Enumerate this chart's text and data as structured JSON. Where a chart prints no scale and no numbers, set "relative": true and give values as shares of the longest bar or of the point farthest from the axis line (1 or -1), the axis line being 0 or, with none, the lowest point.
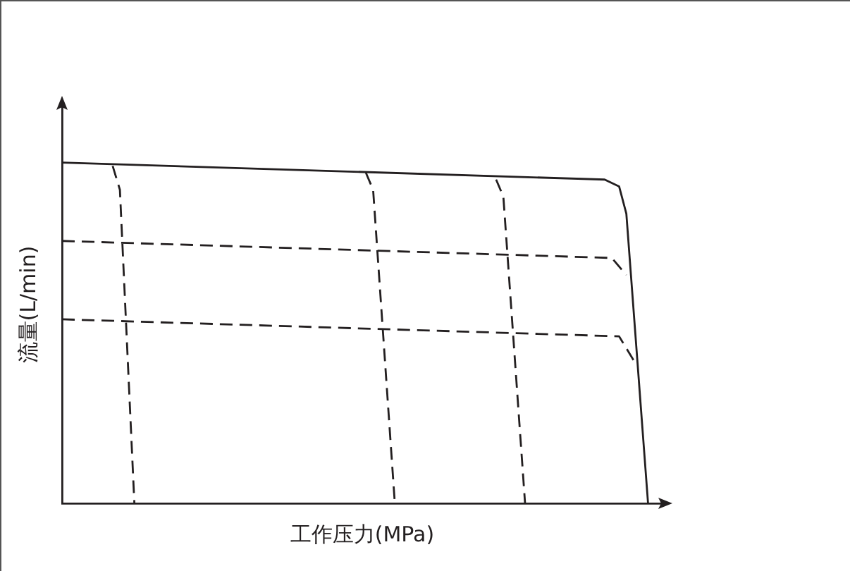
{
  "chart_data": {
    "type": "line",
    "relative": true,
    "xlabel": "工作压力(MPa)",
    "ylabel": "流量(L/min)",
    "tick_labels": false,
    "grid": false,
    "legend": false,
    "marker": "none",
    "categories": [
      null,
      null,
      null,
      null,
      null,
      null,
      null,
      null,
      null,
      null,
      null,
      null,
      null,
      null,
      null,
      null,
      null,
      null,
      null,
      null,
      null,
      null,
      null,
      null,
      null,
      null,
      null,
      null,
      null,
      null,
      null,
      null,
      null,
      null,
      null,
      null,
      null,
      null,
      null,
      null,
      null,
      null,
      null,
      null,
      null,
      null,
      null,
      null,
      null,
      null,
      null,
      null,
      null,
      null,
      null,
      null,
      null,
      null,
      null,
      null,
      null,
      null,
      null,
      null,
      null,
      null,
      null,
      null,
      null,
      null,
      null,
      null,
      null,
      null,
      null,
      null,
      null,
      null,
      null,
      null,
      null,
      null,
      null,
      null
    ],
    "series": [
      {
        "color": "#231f20",
        "line_style": "solid",
        "values": [
          1.0,
          null,
          null,
          null,
          null,
          null,
          null,
          null,
          null,
          null,
          null,
          null,
          null,
          null,
          null,
          null,
          null,
          null,
          null,
          null,
          null,
          null,
          null,
          null,
          null,
          null,
          null,
          null,
          null,
          null,
          null,
          null,
          null,
          null,
          null,
          null,
          null,
          null,
          null,
          null,
          null,
          null,
          null,
          null,
          null,
          null,
          null,
          null,
          null,
          null,
          null,
          null,
          null,
          null,
          null,
          null,
          null,
          null,
          null,
          null,
          null,
          null,
          null,
          null,
          null,
          null,
          null,
          null,
          null,
          null,
          null,
          null,
          null,
          null,
          null,
          0.95,
          null,
          0.93,
          0.85,
          null,
          null,
          0,
          null,
          null
        ]
      },
      {
        "color": "#231f20",
        "line_style": "dashed",
        "values": [
          0.77,
          null,
          null,
          null,
          null,
          null,
          null,
          null,
          null,
          null,
          null,
          null,
          null,
          null,
          null,
          null,
          null,
          null,
          null,
          null,
          null,
          null,
          null,
          null,
          null,
          null,
          null,
          null,
          null,
          null,
          null,
          null,
          null,
          null,
          null,
          null,
          null,
          null,
          null,
          null,
          null,
          null,
          null,
          null,
          null,
          null,
          null,
          null,
          null,
          null,
          null,
          null,
          null,
          null,
          null,
          null,
          null,
          null,
          null,
          null,
          null,
          null,
          null,
          null,
          null,
          null,
          null,
          null,
          null,
          null,
          null,
          null,
          null,
          null,
          null,
          null,
          0.72,
          null,
          0.67,
          null,
          null,
          null,
          null,
          null
        ]
      },
      {
        "color": "#231f20",
        "line_style": "dashed",
        "values": [
          0.54,
          null,
          null,
          null,
          null,
          null,
          null,
          null,
          null,
          null,
          null,
          null,
          null,
          null,
          null,
          null,
          null,
          null,
          null,
          null,
          null,
          null,
          null,
          null,
          null,
          null,
          null,
          null,
          null,
          null,
          null,
          null,
          null,
          null,
          null,
          null,
          null,
          null,
          null,
          null,
          null,
          null,
          null,
          null,
          null,
          null,
          null,
          null,
          null,
          null,
          null,
          null,
          null,
          null,
          null,
          null,
          null,
          null,
          null,
          null,
          null,
          null,
          null,
          null,
          null,
          null,
          null,
          null,
          null,
          null,
          null,
          null,
          null,
          null,
          null,
          null,
          null,
          0.49,
          null,
          0.42,
          null,
          null,
          null,
          null
        ]
      },
      {
        "color": "#231f20",
        "line_style": "dashed",
        "values": [
          null,
          null,
          null,
          null,
          null,
          null,
          null,
          0.99,
          0.92,
          null,
          0,
          null,
          null,
          null,
          null,
          null,
          null,
          null,
          null,
          null,
          null,
          null,
          null,
          null,
          null,
          null,
          null,
          null,
          null,
          null,
          null,
          null,
          null,
          null,
          null,
          null,
          null,
          null,
          null,
          null,
          null,
          null,
          null,
          null,
          null,
          null,
          null,
          null,
          null,
          null,
          null,
          null,
          null,
          null,
          null,
          null,
          null,
          null,
          null,
          null,
          null,
          null,
          null,
          null,
          null,
          null,
          null,
          null,
          null,
          null,
          null,
          null,
          null,
          null,
          null,
          null,
          null,
          null,
          null,
          null,
          null,
          null,
          null,
          null
        ]
      },
      {
        "color": "#231f20",
        "line_style": "dashed",
        "values": [
          null,
          null,
          null,
          null,
          null,
          null,
          null,
          null,
          null,
          null,
          null,
          null,
          null,
          null,
          null,
          null,
          null,
          null,
          null,
          null,
          null,
          null,
          null,
          null,
          null,
          null,
          null,
          null,
          null,
          null,
          null,
          null,
          null,
          null,
          null,
          null,
          null,
          null,
          null,
          null,
          null,
          null,
          0.97,
          0.92,
          null,
          null,
          0,
          null,
          null,
          null,
          null,
          null,
          null,
          null,
          null,
          null,
          null,
          null,
          null,
          null,
          null,
          null,
          null,
          null,
          null,
          null,
          null,
          null,
          null,
          null,
          null,
          null,
          null,
          null,
          null,
          null,
          null,
          null,
          null,
          null,
          null,
          null,
          null,
          null
        ]
      },
      {
        "color": "#231f20",
        "line_style": "dashed",
        "values": [
          null,
          null,
          null,
          null,
          null,
          null,
          null,
          null,
          null,
          null,
          null,
          null,
          null,
          null,
          null,
          null,
          null,
          null,
          null,
          null,
          null,
          null,
          null,
          null,
          null,
          null,
          null,
          null,
          null,
          null,
          null,
          null,
          null,
          null,
          null,
          null,
          null,
          null,
          null,
          null,
          null,
          null,
          null,
          null,
          null,
          null,
          null,
          null,
          null,
          null,
          null,
          null,
          null,
          null,
          null,
          null,
          null,
          null,
          null,
          null,
          0.95,
          0.9,
          null,
          null,
          0,
          null,
          null,
          null,
          null,
          null,
          null,
          null,
          null,
          null,
          null,
          null,
          null,
          null,
          null,
          null,
          null,
          null,
          null,
          null
        ]
      }
    ]
  }
}
